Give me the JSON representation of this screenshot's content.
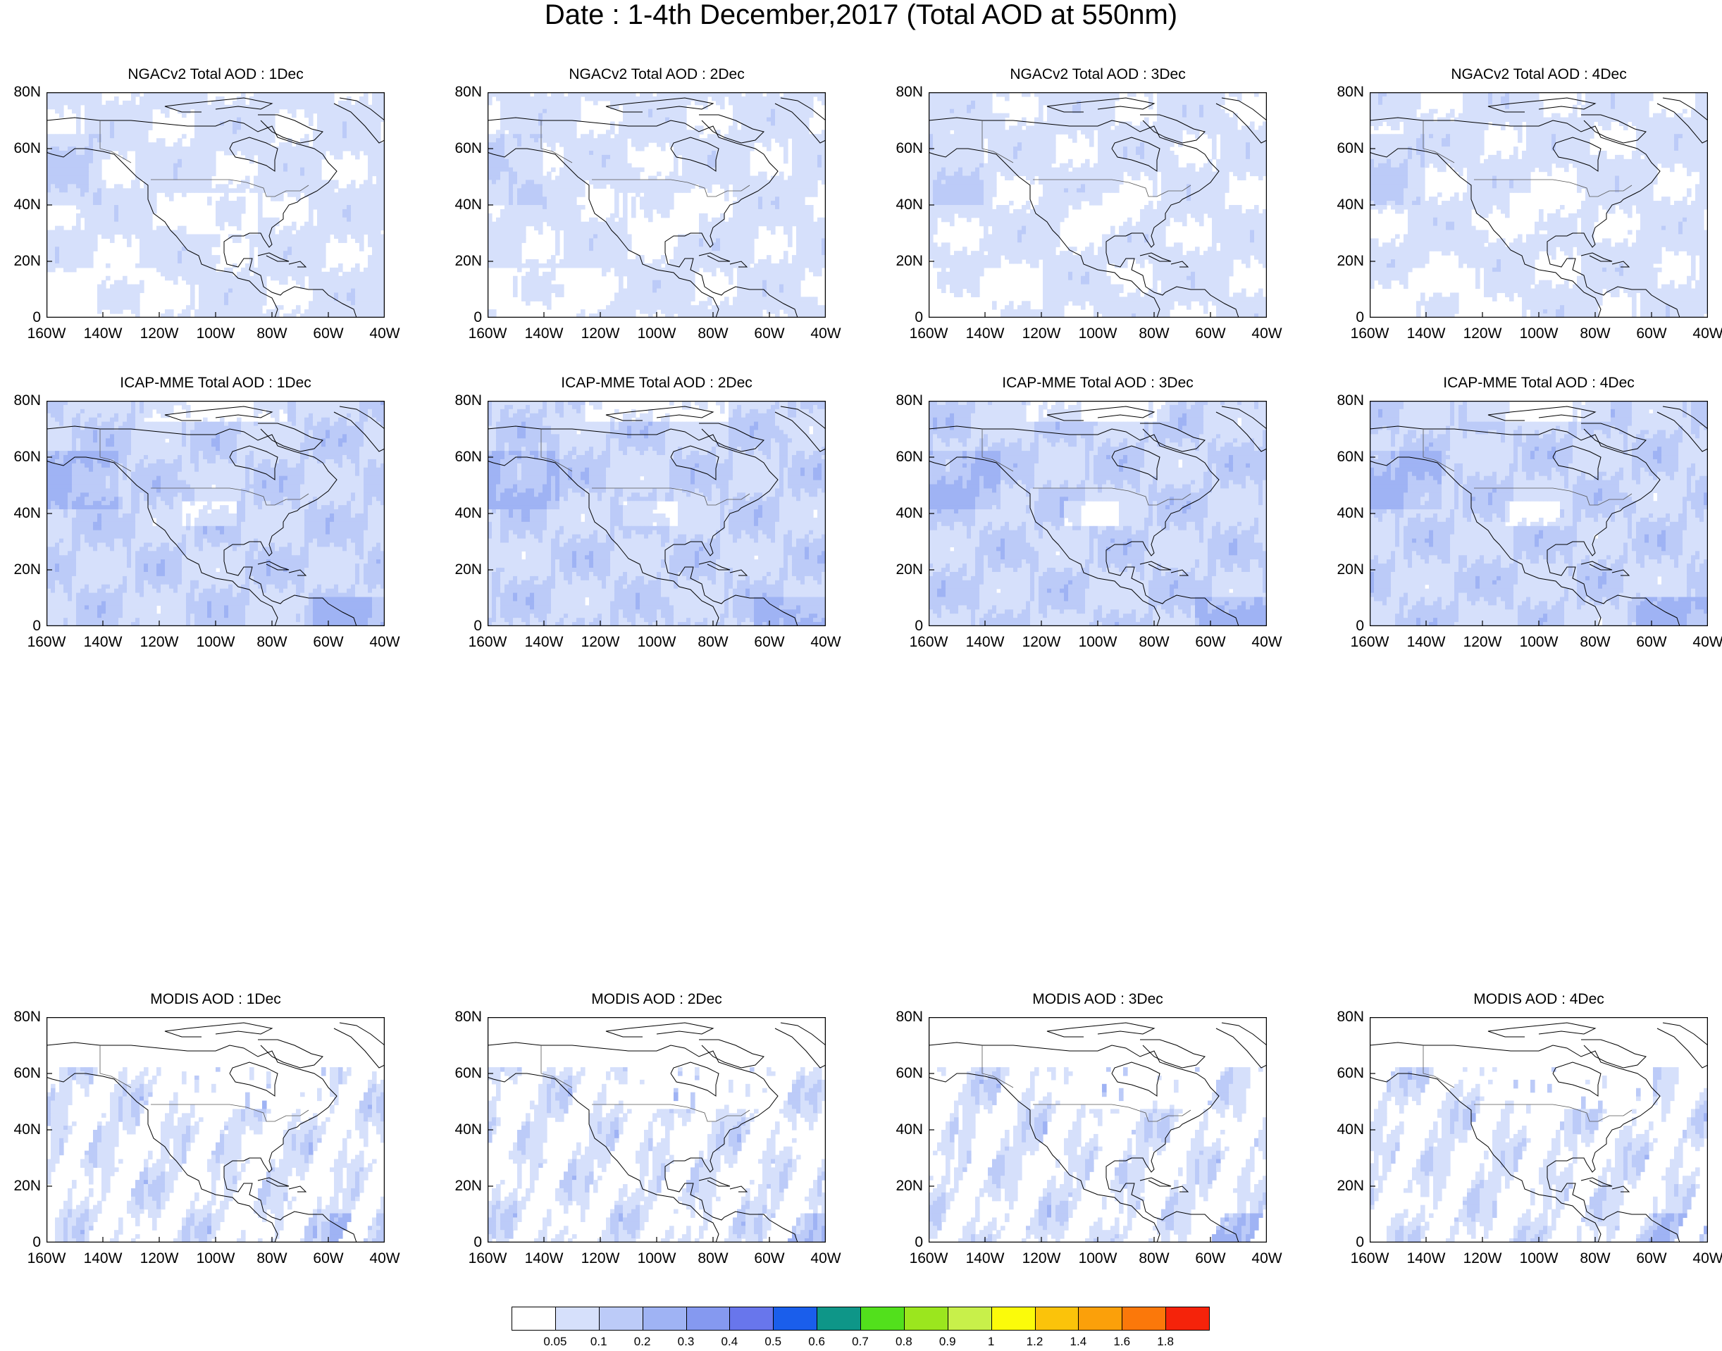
{
  "title": "Date : 1-4th December,2017 (Total AOD at 550nm)",
  "lat_ticks": [
    "80N",
    "60N",
    "40N",
    "20N",
    "0"
  ],
  "lon_ticks": [
    "160W",
    "140W",
    "120W",
    "100W",
    "80W",
    "60W",
    "40W"
  ],
  "panels": [
    {
      "title": "NGACv2 Total AOD : 1Dec",
      "source": "NGACv2",
      "day": "1Dec"
    },
    {
      "title": "NGACv2 Total AOD : 2Dec",
      "source": "NGACv2",
      "day": "2Dec"
    },
    {
      "title": "NGACv2 Total AOD : 3Dec",
      "source": "NGACv2",
      "day": "3Dec"
    },
    {
      "title": "NGACv2 Total AOD : 4Dec",
      "source": "NGACv2",
      "day": "4Dec"
    },
    {
      "title": "ICAP-MME Total AOD : 1Dec",
      "source": "ICAP-MME",
      "day": "1Dec"
    },
    {
      "title": "ICAP-MME Total AOD : 2Dec",
      "source": "ICAP-MME",
      "day": "2Dec"
    },
    {
      "title": "ICAP-MME Total AOD : 3Dec",
      "source": "ICAP-MME",
      "day": "3Dec"
    },
    {
      "title": "ICAP-MME Total AOD : 4Dec",
      "source": "ICAP-MME",
      "day": "4Dec"
    },
    {
      "title": "MODIS AOD : 1Dec",
      "source": "MODIS",
      "day": "1Dec"
    },
    {
      "title": "MODIS AOD : 2Dec",
      "source": "MODIS",
      "day": "2Dec"
    },
    {
      "title": "MODIS AOD : 3Dec",
      "source": "MODIS",
      "day": "3Dec"
    },
    {
      "title": "MODIS AOD : 4Dec",
      "source": "MODIS",
      "day": "4Dec"
    }
  ],
  "colorbar": {
    "labels": [
      "0.05",
      "0.1",
      "0.2",
      "0.3",
      "0.4",
      "0.5",
      "0.6",
      "0.7",
      "0.8",
      "0.9",
      "1",
      "1.2",
      "1.4",
      "1.6",
      "1.8"
    ],
    "colors": [
      "#ffffff",
      "#d6e0fb",
      "#bccbf8",
      "#9fb3f4",
      "#8599f0",
      "#6876ec",
      "#1a5eeb",
      "#0e9688",
      "#52e01c",
      "#9be61e",
      "#c8f04a",
      "#fbfb0a",
      "#fbc30a",
      "#fba00a",
      "#fb780a",
      "#f5230a"
    ]
  }
}
